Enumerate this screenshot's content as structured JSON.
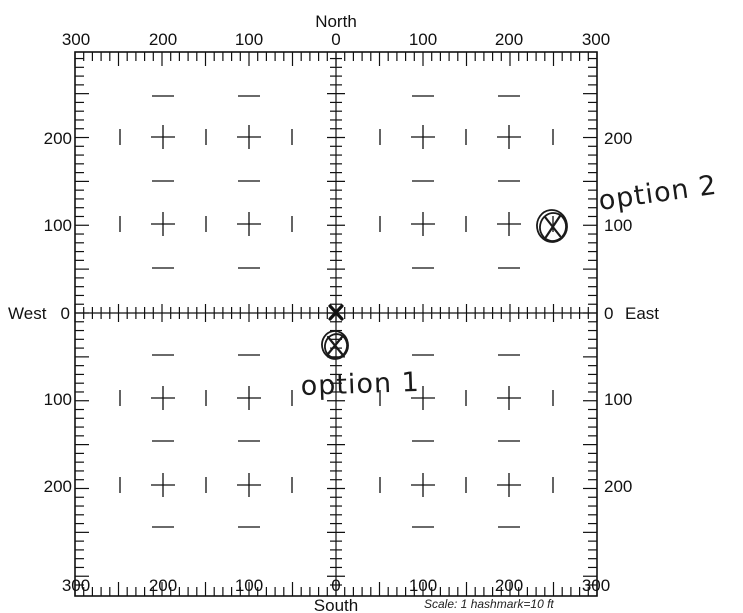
{
  "compass": {
    "north": "North",
    "south": "South",
    "west": "West",
    "east": "East"
  },
  "axis": {
    "top_labels": [
      "300",
      "200",
      "100",
      "0",
      "100",
      "200",
      "300"
    ],
    "bottom_labels": [
      "300",
      "200",
      "100",
      "0",
      "100",
      "200",
      "300"
    ],
    "left_labels": [
      "200",
      "100",
      "0",
      "100",
      "200"
    ],
    "right_labels": [
      "200",
      "100",
      "0",
      "100",
      "200"
    ]
  },
  "scale_note": "Scale: 1 hashmark=10 ft",
  "markers": [
    {
      "id": "origin",
      "symbol": "X",
      "east_ft": 0,
      "north_ft": 0
    },
    {
      "id": "option-1",
      "label": "option 1",
      "east_ft": 0,
      "north_ft": -35
    },
    {
      "id": "option-2",
      "label": "option 2",
      "east_ft": 260,
      "north_ft": 100
    }
  ],
  "colors": {
    "ink": "#111111",
    "pen": "#1a1a1a"
  }
}
